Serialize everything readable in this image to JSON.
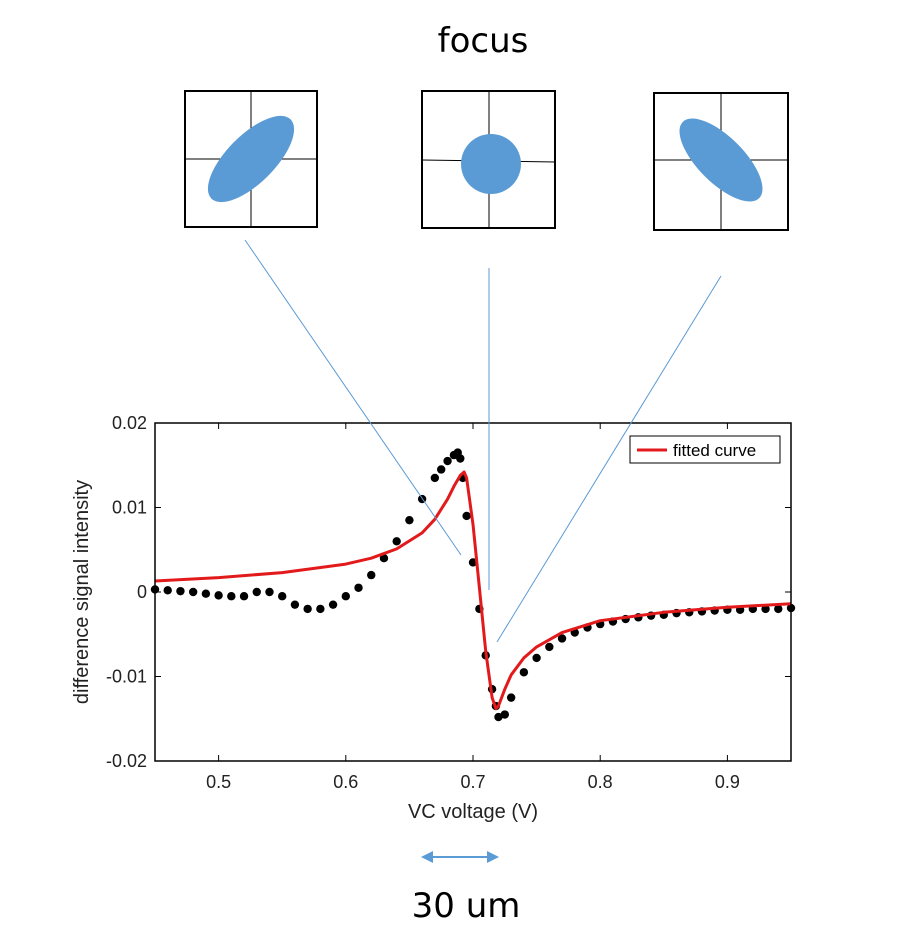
{
  "header": {
    "title": "focus"
  },
  "insets": [
    {
      "shape": "ellipse-tilted-up-right",
      "fill": "#5B9BD5"
    },
    {
      "shape": "circle",
      "fill": "#5B9BD5"
    },
    {
      "shape": "ellipse-tilted-down-right",
      "fill": "#5B9BD5"
    }
  ],
  "scale_bar": {
    "label": "30 um",
    "color": "#5B9BD5"
  },
  "colors": {
    "points": "#000000",
    "fit": "#E31A1C",
    "guide_lines": "#5B9BD5"
  },
  "chart_data": {
    "type": "scatter",
    "title": "",
    "xlabel": "VC voltage (V)",
    "ylabel": "difference signal intensity",
    "xlim": [
      0.45,
      0.95
    ],
    "ylim": [
      -0.02,
      0.02
    ],
    "xticks": [
      0.5,
      0.6,
      0.7,
      0.8,
      0.9
    ],
    "xtick_labels": [
      "0.5",
      "0.6",
      "0.7",
      "0.8",
      "0.9"
    ],
    "yticks": [
      -0.02,
      -0.01,
      0,
      0.01,
      0.02
    ],
    "ytick_labels": [
      "-0.02",
      "-0.01",
      "0",
      "0.01",
      "0.02"
    ],
    "grid": false,
    "legend": {
      "position": "top-right",
      "entries": [
        "fitted curve"
      ]
    },
    "series": [
      {
        "type": "scatter",
        "color": "#000000",
        "x": [
          0.45,
          0.46,
          0.47,
          0.48,
          0.49,
          0.5,
          0.51,
          0.52,
          0.53,
          0.54,
          0.55,
          0.56,
          0.57,
          0.58,
          0.59,
          0.6,
          0.61,
          0.62,
          0.63,
          0.64,
          0.65,
          0.66,
          0.67,
          0.675,
          0.68,
          0.685,
          0.688,
          0.69,
          0.692,
          0.695,
          0.7,
          0.705,
          0.71,
          0.715,
          0.718,
          0.72,
          0.725,
          0.73,
          0.74,
          0.75,
          0.76,
          0.77,
          0.78,
          0.79,
          0.8,
          0.81,
          0.82,
          0.83,
          0.84,
          0.85,
          0.86,
          0.87,
          0.88,
          0.89,
          0.9,
          0.91,
          0.92,
          0.93,
          0.94,
          0.95
        ],
        "y": [
          0.0003,
          0.0002,
          0.0001,
          0.0,
          -0.0002,
          -0.0004,
          -0.0005,
          -0.0005,
          0.0,
          0.0,
          -0.0005,
          -0.0015,
          -0.002,
          -0.002,
          -0.0015,
          -0.0005,
          0.0005,
          0.002,
          0.004,
          0.006,
          0.0085,
          0.011,
          0.0135,
          0.0145,
          0.0155,
          0.0162,
          0.0165,
          0.0158,
          0.0135,
          0.009,
          0.0035,
          -0.002,
          -0.0075,
          -0.0115,
          -0.0135,
          -0.0148,
          -0.0145,
          -0.0125,
          -0.0095,
          -0.0078,
          -0.0065,
          -0.0055,
          -0.0048,
          -0.0042,
          -0.0038,
          -0.0035,
          -0.0032,
          -0.003,
          -0.0028,
          -0.0027,
          -0.0025,
          -0.0024,
          -0.0023,
          -0.0022,
          -0.0021,
          -0.0021,
          -0.002,
          -0.002,
          -0.002,
          -0.0019
        ]
      },
      {
        "name": "fitted curve",
        "type": "line",
        "color": "#E31A1C",
        "x": [
          0.45,
          0.5,
          0.55,
          0.6,
          0.62,
          0.64,
          0.66,
          0.67,
          0.68,
          0.685,
          0.69,
          0.693,
          0.695,
          0.7,
          0.705,
          0.71,
          0.715,
          0.718,
          0.72,
          0.725,
          0.73,
          0.74,
          0.75,
          0.77,
          0.8,
          0.85,
          0.9,
          0.95
        ],
        "y": [
          0.0013,
          0.0017,
          0.0023,
          0.0033,
          0.004,
          0.0051,
          0.007,
          0.0086,
          0.011,
          0.0125,
          0.0138,
          0.0142,
          0.0135,
          0.008,
          0.0005,
          -0.007,
          -0.0125,
          -0.0138,
          -0.0135,
          -0.0115,
          -0.0098,
          -0.0078,
          -0.0065,
          -0.0048,
          -0.0034,
          -0.0024,
          -0.0018,
          -0.0014
        ]
      }
    ]
  }
}
